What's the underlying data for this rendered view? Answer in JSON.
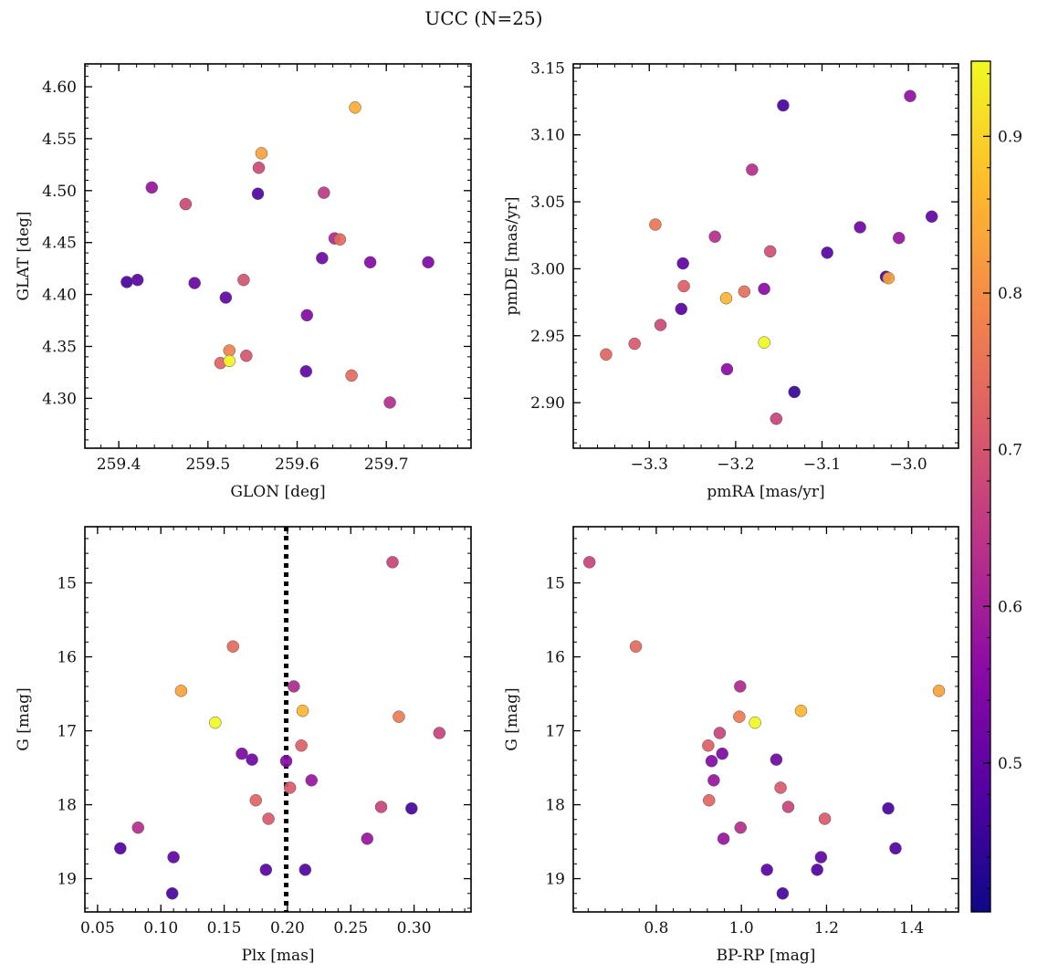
{
  "suptitle": "UCC (N=25)",
  "chart_data": [
    {
      "type": "scatter",
      "xlabel": "GLON [deg]",
      "ylabel": "GLAT [deg]",
      "xlim": [
        259.362,
        259.795
      ],
      "ylim": [
        4.252,
        4.622
      ],
      "xticks": [
        259.4,
        259.5,
        259.6,
        259.7
      ],
      "xtick_labels": [
        "259.4",
        "259.5",
        "259.6",
        "259.7"
      ],
      "yticks": [
        4.3,
        4.35,
        4.4,
        4.45,
        4.5,
        4.55,
        4.6
      ],
      "ytick_labels": [
        "4.30",
        "4.35",
        "4.40",
        "4.45",
        "4.50",
        "4.55",
        "4.60"
      ],
      "points": [
        {
          "x": 259.665,
          "y": 4.58,
          "c": 0.85
        },
        {
          "x": 259.56,
          "y": 4.536,
          "c": 0.83
        },
        {
          "x": 259.557,
          "y": 4.522,
          "c": 0.68
        },
        {
          "x": 259.437,
          "y": 4.503,
          "c": 0.58
        },
        {
          "x": 259.556,
          "y": 4.497,
          "c": 0.48
        },
        {
          "x": 259.63,
          "y": 4.498,
          "c": 0.65
        },
        {
          "x": 259.475,
          "y": 4.487,
          "c": 0.68
        },
        {
          "x": 259.642,
          "y": 4.454,
          "c": 0.62
        },
        {
          "x": 259.648,
          "y": 4.453,
          "c": 0.74
        },
        {
          "x": 259.628,
          "y": 4.435,
          "c": 0.52
        },
        {
          "x": 259.682,
          "y": 4.431,
          "c": 0.55
        },
        {
          "x": 259.747,
          "y": 4.431,
          "c": 0.54
        },
        {
          "x": 259.421,
          "y": 4.414,
          "c": 0.49
        },
        {
          "x": 259.409,
          "y": 4.412,
          "c": 0.47
        },
        {
          "x": 259.485,
          "y": 4.411,
          "c": 0.51
        },
        {
          "x": 259.54,
          "y": 4.414,
          "c": 0.7
        },
        {
          "x": 259.52,
          "y": 4.397,
          "c": 0.5
        },
        {
          "x": 259.611,
          "y": 4.38,
          "c": 0.55
        },
        {
          "x": 259.524,
          "y": 4.346,
          "c": 0.78
        },
        {
          "x": 259.543,
          "y": 4.341,
          "c": 0.7
        },
        {
          "x": 259.514,
          "y": 4.334,
          "c": 0.73
        },
        {
          "x": 259.524,
          "y": 4.336,
          "c": 0.94
        },
        {
          "x": 259.61,
          "y": 4.326,
          "c": 0.5
        },
        {
          "x": 259.661,
          "y": 4.322,
          "c": 0.74
        },
        {
          "x": 259.704,
          "y": 4.296,
          "c": 0.63
        }
      ]
    },
    {
      "type": "scatter",
      "xlabel": "pmRA [mas/yr]",
      "ylabel": "pmDE [mas/yr]",
      "xlim": [
        -3.388,
        -2.942
      ],
      "ylim": [
        2.866,
        3.153
      ],
      "xticks": [
        -3.3,
        -3.2,
        -3.1,
        -3.0
      ],
      "xtick_labels": [
        "−3.3",
        "−3.2",
        "−3.1",
        "−3.0"
      ],
      "yticks": [
        2.9,
        2.95,
        3.0,
        3.05,
        3.1,
        3.15
      ],
      "ytick_labels": [
        "2.90",
        "2.95",
        "3.00",
        "3.05",
        "3.10",
        "3.15"
      ],
      "points": [
        {
          "x": -2.998,
          "y": 3.129,
          "c": 0.57
        },
        {
          "x": -3.145,
          "y": 3.122,
          "c": 0.47
        },
        {
          "x": -3.181,
          "y": 3.074,
          "c": 0.63
        },
        {
          "x": -2.973,
          "y": 3.039,
          "c": 0.5
        },
        {
          "x": -3.293,
          "y": 3.033,
          "c": 0.76
        },
        {
          "x": -3.056,
          "y": 3.031,
          "c": 0.52
        },
        {
          "x": -3.224,
          "y": 3.024,
          "c": 0.63
        },
        {
          "x": -3.011,
          "y": 3.023,
          "c": 0.58
        },
        {
          "x": -3.16,
          "y": 3.013,
          "c": 0.69
        },
        {
          "x": -3.094,
          "y": 3.012,
          "c": 0.49
        },
        {
          "x": -3.261,
          "y": 3.004,
          "c": 0.5
        },
        {
          "x": -3.026,
          "y": 2.994,
          "c": 0.47
        },
        {
          "x": -3.023,
          "y": 2.993,
          "c": 0.83
        },
        {
          "x": -3.26,
          "y": 2.987,
          "c": 0.72
        },
        {
          "x": -3.167,
          "y": 2.985,
          "c": 0.56
        },
        {
          "x": -3.19,
          "y": 2.983,
          "c": 0.75
        },
        {
          "x": -3.211,
          "y": 2.978,
          "c": 0.86
        },
        {
          "x": -3.263,
          "y": 2.97,
          "c": 0.49
        },
        {
          "x": -3.287,
          "y": 2.958,
          "c": 0.68
        },
        {
          "x": -3.167,
          "y": 2.945,
          "c": 0.95
        },
        {
          "x": -3.317,
          "y": 2.944,
          "c": 0.71
        },
        {
          "x": -3.35,
          "y": 2.936,
          "c": 0.73
        },
        {
          "x": -3.21,
          "y": 2.925,
          "c": 0.56
        },
        {
          "x": -3.132,
          "y": 2.908,
          "c": 0.45
        },
        {
          "x": -3.153,
          "y": 2.888,
          "c": 0.67
        }
      ]
    },
    {
      "type": "scatter",
      "xlabel": "Plx [mas]",
      "ylabel": "G [mag]",
      "xlim": [
        0.04,
        0.345
      ],
      "ylim": [
        19.45,
        14.24
      ],
      "y_inverted": true,
      "vline": {
        "x": 0.199,
        "style": "dotted"
      },
      "xticks": [
        0.05,
        0.1,
        0.15,
        0.2,
        0.25,
        0.3
      ],
      "xtick_labels": [
        "0.05",
        "0.10",
        "0.15",
        "0.20",
        "0.25",
        "0.30"
      ],
      "yticks": [
        15,
        16,
        17,
        18,
        19
      ],
      "ytick_labels": [
        "15",
        "16",
        "17",
        "18",
        "19"
      ],
      "points": [
        {
          "x": 0.283,
          "y": 14.72,
          "c": 0.67
        },
        {
          "x": 0.157,
          "y": 15.86,
          "c": 0.74
        },
        {
          "x": 0.205,
          "y": 16.4,
          "c": 0.62
        },
        {
          "x": 0.116,
          "y": 16.46,
          "c": 0.83
        },
        {
          "x": 0.212,
          "y": 16.73,
          "c": 0.86
        },
        {
          "x": 0.288,
          "y": 16.81,
          "c": 0.77
        },
        {
          "x": 0.143,
          "y": 16.89,
          "c": 0.95
        },
        {
          "x": 0.32,
          "y": 17.03,
          "c": 0.67
        },
        {
          "x": 0.211,
          "y": 17.2,
          "c": 0.72
        },
        {
          "x": 0.164,
          "y": 17.31,
          "c": 0.54
        },
        {
          "x": 0.172,
          "y": 17.39,
          "c": 0.52
        },
        {
          "x": 0.199,
          "y": 17.41,
          "c": 0.55
        },
        {
          "x": 0.219,
          "y": 17.67,
          "c": 0.58
        },
        {
          "x": 0.202,
          "y": 17.77,
          "c": 0.71
        },
        {
          "x": 0.175,
          "y": 17.94,
          "c": 0.73
        },
        {
          "x": 0.274,
          "y": 18.03,
          "c": 0.67
        },
        {
          "x": 0.298,
          "y": 18.05,
          "c": 0.47
        },
        {
          "x": 0.185,
          "y": 18.19,
          "c": 0.71
        },
        {
          "x": 0.082,
          "y": 18.31,
          "c": 0.63
        },
        {
          "x": 0.263,
          "y": 18.46,
          "c": 0.58
        },
        {
          "x": 0.068,
          "y": 18.59,
          "c": 0.48
        },
        {
          "x": 0.11,
          "y": 18.71,
          "c": 0.5
        },
        {
          "x": 0.183,
          "y": 18.88,
          "c": 0.49
        },
        {
          "x": 0.214,
          "y": 18.88,
          "c": 0.48
        },
        {
          "x": 0.109,
          "y": 19.2,
          "c": 0.47
        }
      ]
    },
    {
      "type": "scatter",
      "xlabel": "BP-RP [mag]",
      "ylabel": "G [mag]",
      "xlim": [
        0.605,
        1.51
      ],
      "ylim": [
        19.45,
        14.24
      ],
      "y_inverted": true,
      "xticks": [
        0.8,
        1.0,
        1.2,
        1.4
      ],
      "xtick_labels": [
        "0.8",
        "1.0",
        "1.2",
        "1.4"
      ],
      "yticks": [
        15,
        16,
        17,
        18,
        19
      ],
      "ytick_labels": [
        "15",
        "16",
        "17",
        "18",
        "19"
      ],
      "points": [
        {
          "x": 0.643,
          "y": 14.72,
          "c": 0.67
        },
        {
          "x": 0.752,
          "y": 15.86,
          "c": 0.74
        },
        {
          "x": 0.997,
          "y": 16.4,
          "c": 0.62
        },
        {
          "x": 1.464,
          "y": 16.46,
          "c": 0.83
        },
        {
          "x": 1.14,
          "y": 16.73,
          "c": 0.86
        },
        {
          "x": 0.995,
          "y": 16.81,
          "c": 0.77
        },
        {
          "x": 1.032,
          "y": 16.89,
          "c": 0.95
        },
        {
          "x": 0.949,
          "y": 17.03,
          "c": 0.67
        },
        {
          "x": 0.922,
          "y": 17.2,
          "c": 0.72
        },
        {
          "x": 0.955,
          "y": 17.31,
          "c": 0.54
        },
        {
          "x": 1.082,
          "y": 17.39,
          "c": 0.52
        },
        {
          "x": 0.93,
          "y": 17.41,
          "c": 0.55
        },
        {
          "x": 0.935,
          "y": 17.67,
          "c": 0.58
        },
        {
          "x": 1.092,
          "y": 17.77,
          "c": 0.71
        },
        {
          "x": 0.924,
          "y": 17.94,
          "c": 0.73
        },
        {
          "x": 1.11,
          "y": 18.03,
          "c": 0.67
        },
        {
          "x": 1.345,
          "y": 18.05,
          "c": 0.47
        },
        {
          "x": 1.196,
          "y": 18.19,
          "c": 0.71
        },
        {
          "x": 0.998,
          "y": 18.31,
          "c": 0.63
        },
        {
          "x": 0.958,
          "y": 18.46,
          "c": 0.58
        },
        {
          "x": 1.362,
          "y": 18.59,
          "c": 0.48
        },
        {
          "x": 1.187,
          "y": 18.71,
          "c": 0.5
        },
        {
          "x": 1.06,
          "y": 18.88,
          "c": 0.49
        },
        {
          "x": 1.178,
          "y": 18.88,
          "c": 0.48
        },
        {
          "x": 1.097,
          "y": 19.2,
          "c": 0.47
        }
      ]
    }
  ],
  "colorbar": {
    "colormap": "plasma",
    "range": [
      0.405,
      0.948
    ],
    "ticks": [
      0.5,
      0.6,
      0.7,
      0.8,
      0.9
    ],
    "tick_labels": [
      "0.5",
      "0.6",
      "0.7",
      "0.8",
      "0.9"
    ]
  }
}
